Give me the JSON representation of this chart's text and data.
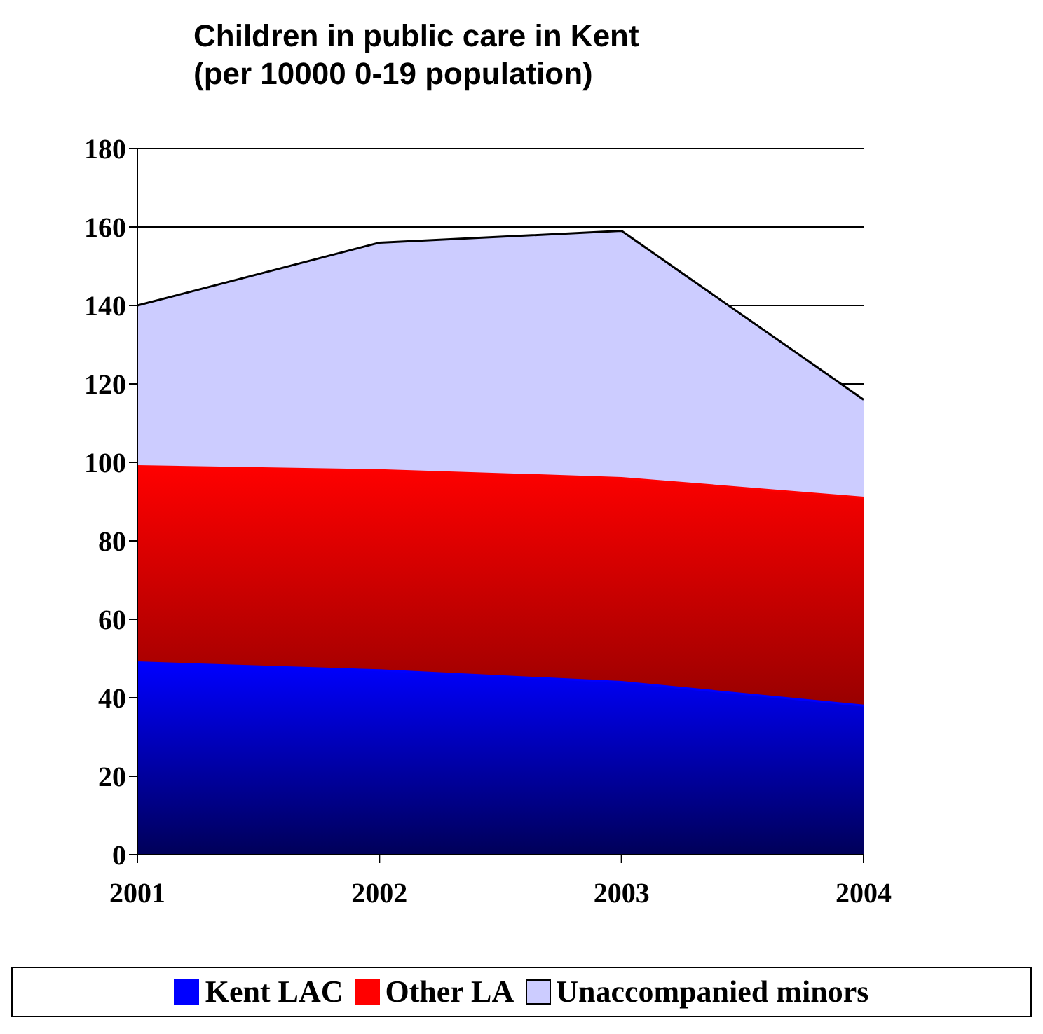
{
  "chart_data": {
    "type": "area",
    "title": "Children in public care in Kent\n(per 10000 0-19 population)",
    "categories": [
      "2001",
      "2002",
      "2003",
      "2004"
    ],
    "stacked": true,
    "series": [
      {
        "name": "Kent LAC",
        "color": "#0000ff",
        "values": [
          49,
          47,
          44,
          38
        ]
      },
      {
        "name": "Other LA",
        "color": "#ff0000",
        "values": [
          50,
          51,
          52,
          53
        ]
      },
      {
        "name": "Unaccompanied minors",
        "color": "#ccccff",
        "values": [
          41,
          58,
          63,
          25
        ]
      }
    ],
    "ylim": [
      0,
      180
    ],
    "yticks": [
      0,
      20,
      40,
      60,
      80,
      100,
      120,
      140,
      160,
      180
    ],
    "grid": "y",
    "legend": "bottom"
  }
}
